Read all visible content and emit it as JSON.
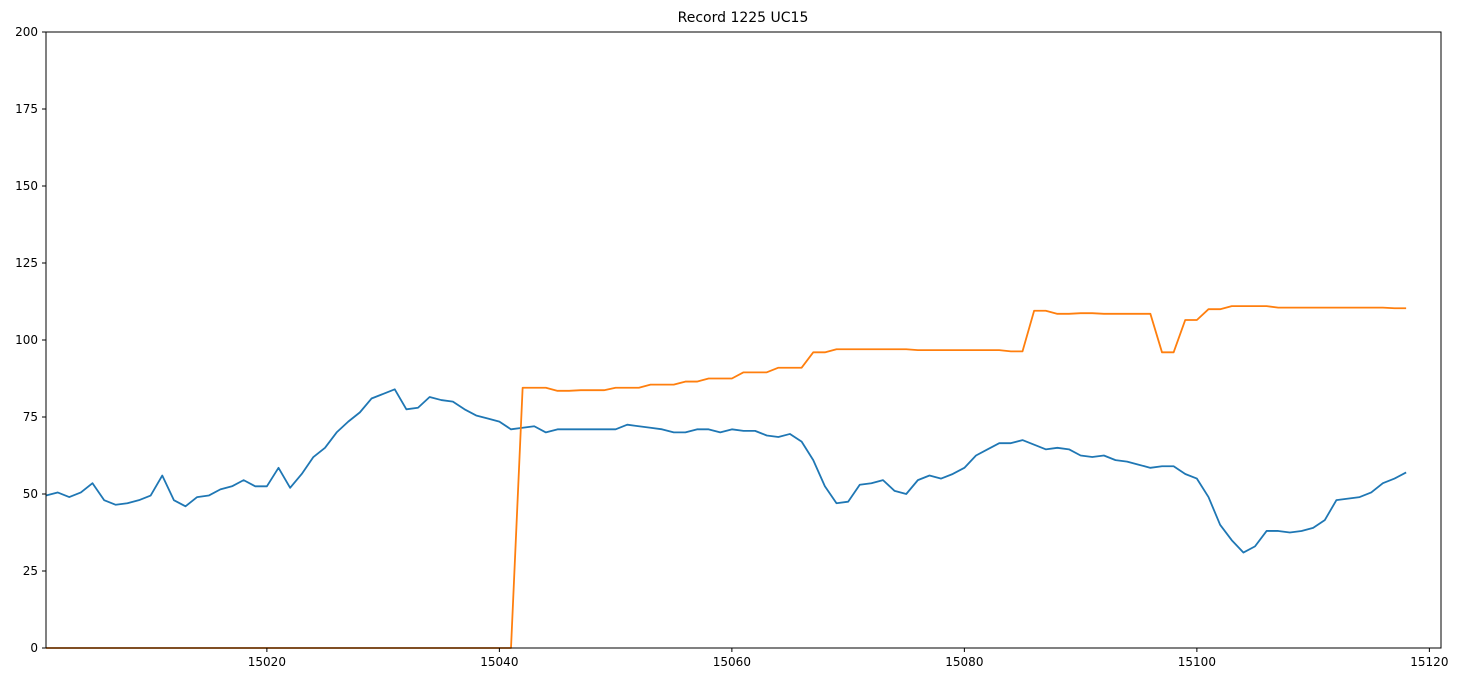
{
  "chart_data": {
    "type": "line",
    "title": "Record 1225 UC15",
    "xlabel": "",
    "ylabel": "",
    "xlim": [
      15001,
      15121
    ],
    "ylim": [
      0,
      200
    ],
    "xticks": [
      15020,
      15040,
      15060,
      15080,
      15100,
      15120
    ],
    "yticks": [
      0,
      25,
      50,
      75,
      100,
      125,
      150,
      175,
      200
    ],
    "grid": false,
    "colors": [
      "#1f77b4",
      "#ff7f0e"
    ],
    "x": [
      15001,
      15002,
      15003,
      15004,
      15005,
      15006,
      15007,
      15008,
      15009,
      15010,
      15011,
      15012,
      15013,
      15014,
      15015,
      15016,
      15017,
      15018,
      15019,
      15020,
      15021,
      15022,
      15023,
      15024,
      15025,
      15026,
      15027,
      15028,
      15029,
      15030,
      15031,
      15032,
      15033,
      15034,
      15035,
      15036,
      15037,
      15038,
      15039,
      15040,
      15041,
      15042,
      15043,
      15044,
      15045,
      15046,
      15047,
      15048,
      15049,
      15050,
      15051,
      15052,
      15053,
      15054,
      15055,
      15056,
      15057,
      15058,
      15059,
      15060,
      15061,
      15062,
      15063,
      15064,
      15065,
      15066,
      15067,
      15068,
      15069,
      15070,
      15071,
      15072,
      15073,
      15074,
      15075,
      15076,
      15077,
      15078,
      15079,
      15080,
      15081,
      15082,
      15083,
      15084,
      15085,
      15086,
      15087,
      15088,
      15089,
      15090,
      15091,
      15092,
      15093,
      15094,
      15095,
      15096,
      15097,
      15098,
      15099,
      15100,
      15101,
      15102,
      15103,
      15104,
      15105,
      15106,
      15107,
      15108,
      15109,
      15110,
      15111,
      15112,
      15113,
      15114,
      15115,
      15116,
      15117,
      15118
    ],
    "series": [
      {
        "values": [
          49.5,
          50.5,
          49,
          50.5,
          53.5,
          48,
          46.5,
          47,
          48,
          49.5,
          56,
          48,
          46,
          49,
          49.5,
          51.5,
          52.5,
          54.5,
          52.5,
          52.5,
          58.5,
          52,
          56.5,
          62,
          65,
          70,
          73.5,
          76.5,
          81,
          82.5,
          84,
          77.5,
          78,
          81.5,
          80.5,
          80,
          77.5,
          75.5,
          74.5,
          73.5,
          71,
          71.5,
          72,
          70,
          71,
          71,
          71,
          71,
          71,
          71,
          72.5,
          72,
          71.5,
          71,
          70,
          70,
          71,
          71,
          70,
          71,
          70.5,
          70.5,
          69,
          68.5,
          69.5,
          67,
          61,
          52.5,
          47,
          47.5,
          53,
          53.5,
          54.5,
          51,
          50,
          54.5,
          56,
          55,
          56.5,
          58.5,
          62.5,
          64.5,
          66.5,
          66.5,
          67.5,
          66,
          64.5,
          65,
          64.5,
          62.5,
          62,
          62.5,
          61,
          60.5,
          59.5,
          58.5,
          59,
          59,
          56.5,
          55,
          49,
          40,
          35,
          31,
          33,
          38,
          38,
          37.5,
          38,
          39,
          41.5,
          48,
          48.5,
          49,
          50.5,
          53.5,
          55,
          57
        ]
      },
      {
        "values": [
          0,
          0,
          0,
          0,
          0,
          0,
          0,
          0,
          0,
          0,
          0,
          0,
          0,
          0,
          0,
          0,
          0,
          0,
          0,
          0,
          0,
          0,
          0,
          0,
          0,
          0,
          0,
          0,
          0,
          0,
          0,
          0,
          0,
          0,
          0,
          0,
          0,
          0,
          0,
          0,
          0,
          84.5,
          84.5,
          84.5,
          83.5,
          83.5,
          83.7,
          83.7,
          83.7,
          84.5,
          84.5,
          84.5,
          85.5,
          85.5,
          85.5,
          86.5,
          86.5,
          87.5,
          87.5,
          87.5,
          89.5,
          89.5,
          89.5,
          91,
          91,
          91,
          96,
          96,
          97,
          97,
          97,
          97,
          97,
          97,
          97,
          96.7,
          96.7,
          96.7,
          96.7,
          96.7,
          96.7,
          96.7,
          96.7,
          96.3,
          96.3,
          109.5,
          109.5,
          108.5,
          108.5,
          108.7,
          108.7,
          108.5,
          108.5,
          108.5,
          108.5,
          108.5,
          96,
          96,
          106.5,
          106.5,
          110,
          110,
          111,
          111,
          111,
          111,
          110.5,
          110.5,
          110.5,
          110.5,
          110.5,
          110.5,
          110.5,
          110.5,
          110.5,
          110.5,
          110.3,
          110.3
        ]
      }
    ]
  }
}
